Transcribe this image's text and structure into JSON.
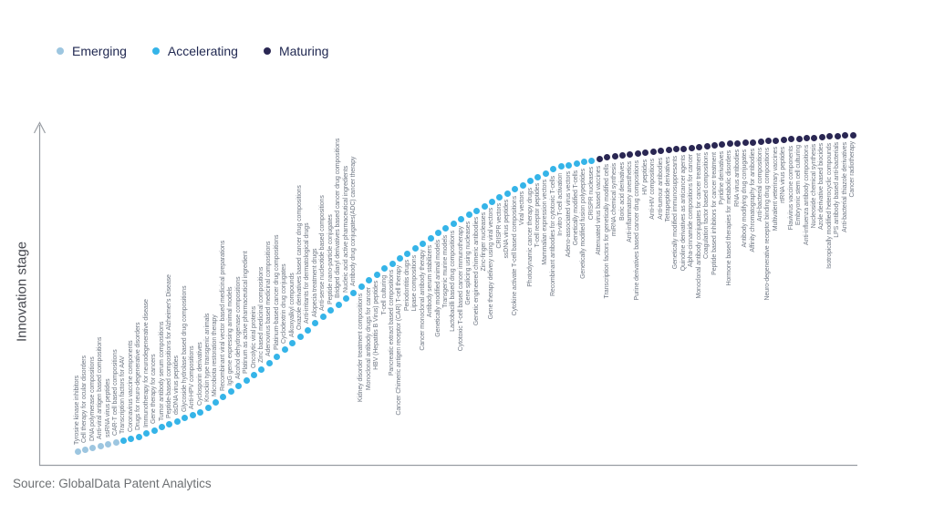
{
  "source": "Source: GlobalData Patent Analytics",
  "chart_data": {
    "type": "scatter",
    "title": "",
    "xlabel": "",
    "ylabel": "Innovation stage",
    "shape": "s-curve",
    "legend_position": "top-left",
    "grid": false,
    "segments": [
      {
        "stage": "Emerging",
        "color": "#9dc6e0",
        "labels": [
          "Tyrosine kinase inhibitors",
          "Cell therapy for ocular disorders",
          "DNA polymerase compositions",
          "Anti-viral antigen based compositions",
          "ssRNA virus peptides",
          "CAR-T cell based compositions"
        ]
      },
      {
        "stage": "Accelerating",
        "color": "#35b4e8",
        "labels": [
          "Transcription factors for AAV",
          "Coronavirus vaccine components",
          "Drugs for neuro-degenerative disorders",
          "Immunotherapy for neurodegenerative disease",
          "Gene therapy for cancers",
          "Tumor antibody serum compositions",
          "Peptide-based compositions for Alzheimer's Disease",
          "dsDNA virus peptides",
          "Glycoside hydrolase based drug compositions",
          "Anti-HPV compositions",
          "Cyclosporin derivatives",
          "Knockin type transgenic animals",
          "Microbiota restoration therapy",
          "Recombinant viral vector based medicinal preparations",
          "IgG gene expressing animal models",
          "Alcohol dehydrogenase compositions",
          "Platinum as active pharmaceutical ingredient",
          "Oncolytic viral proteins",
          "Zinc based medicinal compositions",
          "Adenovirus based medicinal compositions",
          "Platinum-based cancer drug compositions",
          "Cyclodextrin drug conjugates",
          "Alkoxyalkyl compounds",
          "Oxazole derivatives based cancer drug compositions",
          "Anti-irritants for dermatological drugs",
          "Alopecia treatment drugs",
          "Anti-sense nucleotide based compositions",
          "Peptide nano-particle conjugates",
          "Bridged diaryl derivatives based cancer drug compositions",
          "Nucleic acid active pharmaceutical ingredients",
          "Antibody drug conjugates(ADC) cancer therapy",
          "Kidney disorder treatment compositions",
          "Monoclonal antibody drugs for cancer",
          "HBV (Hepatitis B Virus) peptides",
          "T-cell culturing",
          "Pancreatic extract based compositions",
          "Cancer Chimeric antigen receptor (CAR) T-cell therapy",
          "Periodontitis drugs",
          "Lipase compositions",
          "Cancer monoclonal antibody therapy",
          "Antibody serum stabilizers",
          "Genetically modified animal models",
          "Transgenic murine models",
          "Lactobacilli based drug compositions",
          "Cytotoxic T-cell based cancer immunotherapy",
          "Gene splicing using nucleases",
          "Genetic engineered chimeric antibodies",
          "Zinc-finger nucleases",
          "Gene therapy delivery using viral vectors",
          "CRISPR vectors",
          "ssDNA virus peptides",
          "Cytokine activate T-cell based compositions",
          "Viral vectors",
          "Photodynamic cancer therapy drugs",
          "T-cell receptor peptides",
          "Mammalian expression vectors",
          "Recombinant antibodies for cytotoxic T-cells",
          "In-vitro T-cell activation",
          "Adeno-associated virus vectors",
          "Genetically modified T-cells",
          "Genetically modified fusion polypeptides",
          "CRISPR nucleases"
        ]
      },
      {
        "stage": "Maturing",
        "color": "#2a2753",
        "labels": [
          "Attenuated virus based vaccines",
          "Transcription factors for genetically modified cells",
          "miRNA chemical synthesis",
          "Boric acid derivatives",
          "Anti-inflammatory anesthetics",
          "Purine derivatives based cancer drug compositions",
          "HIV peptides",
          "Anti-HIV compositions",
          "Anti-tumour antibodies",
          "Tetrapeptide derivatives",
          "Genetically modified immunosuppresants",
          "Quinoline derivatives as anticancer agents",
          "Alpha-cinnamide compositions for cancer",
          "Monoclonal antibody conjugates for cancer treatment",
          "Coagulation factor based compositions",
          "Peptide based inhibitors for cancer treatment",
          "Pyridine derivatives",
          "Hormone based therapies for metabolic disorders",
          "RNA virus antibodies",
          "Antibody modifying drug conjugates",
          "Affinity chromatography for antibodies",
          "Anti-bacterial compositions",
          "Neuro-degenerative receptor binding drug compositions",
          "Multivalent veterinary vaccines",
          "rtRNA virus peptides",
          "Flavivirus vaccine components",
          "Embryonic stem cell culturing",
          "Anti-influenza antibody compositions",
          "Nucleoside chemical synthesis",
          "Azole derivative based biocides",
          "Isotropically modified heterocyclic compounds",
          "LPS antibody based anti-bacterials",
          "Anti-bacterial thiazole derivatives",
          "Cancer radiotherapy"
        ]
      }
    ]
  }
}
